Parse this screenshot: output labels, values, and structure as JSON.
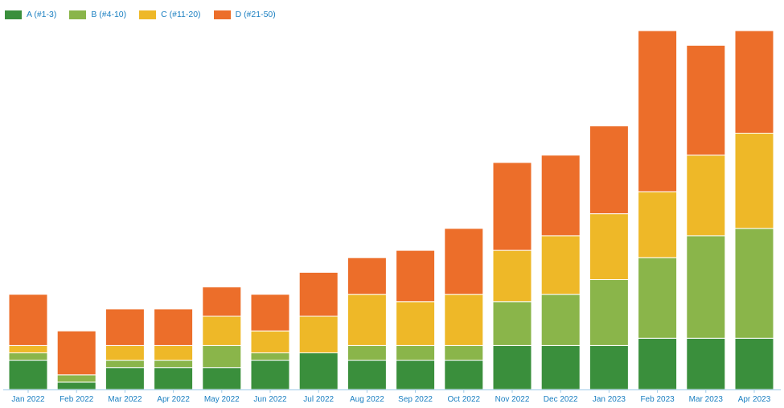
{
  "chart_data": {
    "type": "bar",
    "stacked": true,
    "categories": [
      "Jan 2022",
      "Feb 2022",
      "Mar 2022",
      "Apr 2022",
      "May 2022",
      "Jun 2022",
      "Jul 2022",
      "Aug 2022",
      "Sep 2022",
      "Oct 2022",
      "Nov 2022",
      "Dec 2022",
      "Jan 2023",
      "Feb 2023",
      "Mar 2023",
      "Apr 2023"
    ],
    "series": [
      {
        "name": "A (#1-3)",
        "color": "#3a8f3c",
        "values": [
          4,
          1,
          3,
          3,
          3,
          4,
          5,
          4,
          4,
          4,
          6,
          6,
          6,
          7,
          7,
          7
        ]
      },
      {
        "name": "B (#4-10)",
        "color": "#8ab54a",
        "values": [
          1,
          1,
          1,
          1,
          3,
          1,
          0,
          2,
          2,
          2,
          6,
          7,
          9,
          11,
          14,
          15
        ]
      },
      {
        "name": "C (#11-20)",
        "color": "#eeb828",
        "values": [
          1,
          0,
          2,
          2,
          4,
          3,
          5,
          7,
          6,
          7,
          7,
          8,
          9,
          9,
          11,
          13
        ]
      },
      {
        "name": "D (#21-50)",
        "color": "#ec6e2a",
        "values": [
          7,
          6,
          5,
          5,
          4,
          5,
          6,
          5,
          7,
          9,
          12,
          11,
          12,
          22,
          15,
          14
        ]
      }
    ],
    "ylim": [
      0,
      50
    ],
    "grid": false,
    "legend_position": "top-left",
    "title": "",
    "xlabel": "",
    "ylabel": ""
  }
}
